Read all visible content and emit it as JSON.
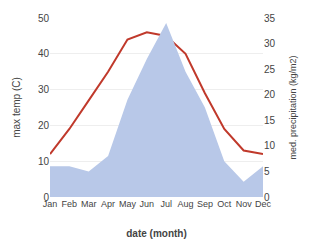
{
  "chart_data": {
    "type": "line",
    "xlabel": "date (month)",
    "ylabel": "max temp (C)",
    "y2label": "med. precipitation (kg/m2)",
    "categories": [
      "Jan",
      "Feb",
      "Mar",
      "Apr",
      "May",
      "Jun",
      "Jul",
      "Aug",
      "Sep",
      "Oct",
      "Nov",
      "Dec"
    ],
    "series": [
      {
        "type": "area",
        "axis": "y2",
        "color": "#b8c8e8",
        "values": [
          6.0,
          6.0,
          5.0,
          8.0,
          19.0,
          27.0,
          34.0,
          24.5,
          17.5,
          7.0,
          3.0,
          6.0
        ]
      },
      {
        "type": "line",
        "color": "#c0392b",
        "values": [
          12.0,
          19.0,
          27.0,
          35.0,
          44.0,
          46.0,
          45.0,
          40.0,
          29.0,
          19.0,
          13.0,
          12.0
        ]
      }
    ],
    "ylim": [
      0,
      50
    ],
    "yticks": [
      0,
      10,
      20,
      30,
      40,
      50
    ],
    "y2lim": [
      0,
      35
    ],
    "y2ticks": [
      0,
      5,
      10,
      15,
      20,
      25,
      30,
      35
    ],
    "grid": true
  }
}
